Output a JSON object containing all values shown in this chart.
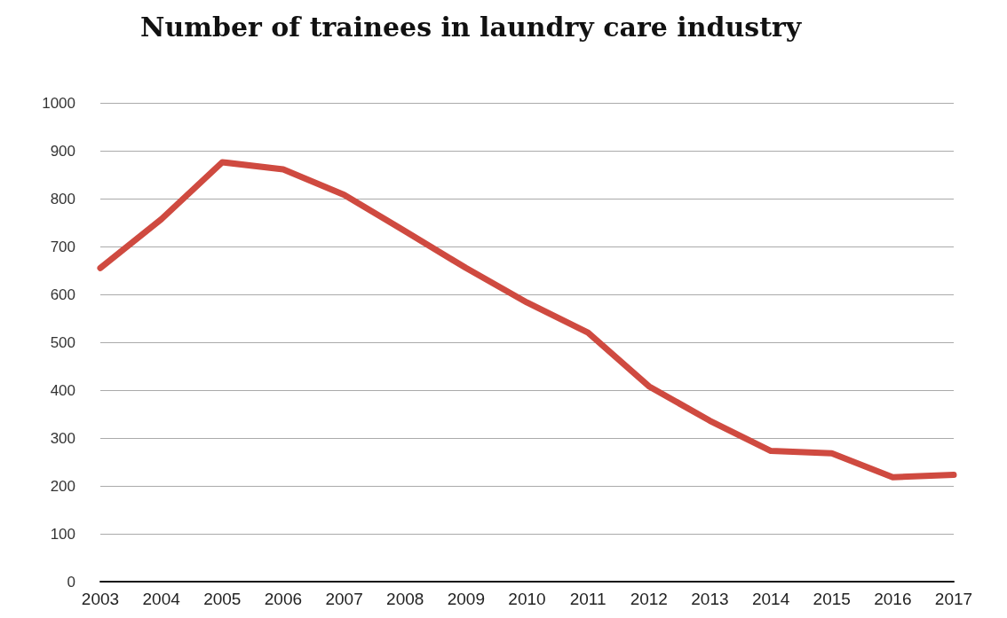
{
  "chart_data": {
    "type": "line",
    "title": "Number of trainees in laundry care industry",
    "categories": [
      "2003",
      "2004",
      "2005",
      "2006",
      "2007",
      "2008",
      "2009",
      "2010",
      "2011",
      "2012",
      "2013",
      "2014",
      "2015",
      "2016",
      "2017"
    ],
    "series": [
      {
        "color": "#cf4a40",
        "values": [
          655,
          757,
          876,
          861,
          808,
          732,
          655,
          583,
          520,
          408,
          336,
          273,
          268,
          218,
          223
        ]
      }
    ],
    "ylim": [
      0,
      1000
    ],
    "yticks": [
      0,
      100,
      200,
      300,
      400,
      500,
      600,
      700,
      800,
      900,
      1000
    ],
    "grid": "y",
    "marker": "none",
    "line_style": "solid"
  }
}
